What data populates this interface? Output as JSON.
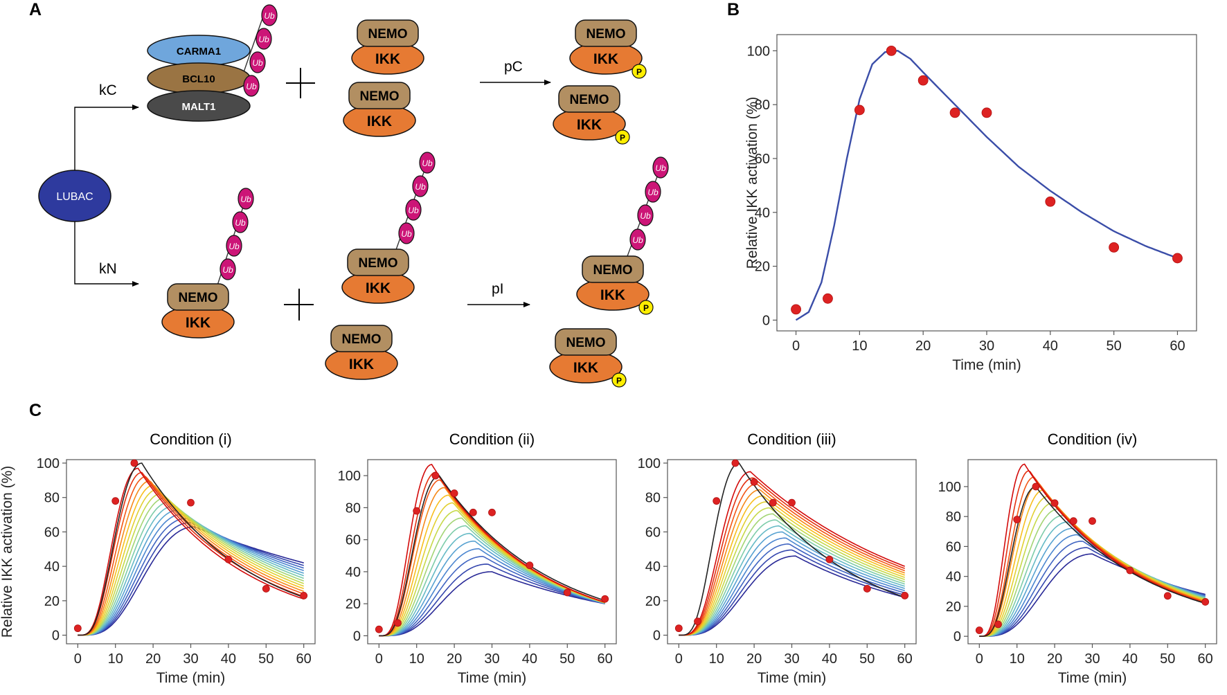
{
  "panel_labels": {
    "a": "A",
    "b": "B",
    "c": "C"
  },
  "diagram": {
    "lubac": "LUBAC",
    "cbm": {
      "carma1": "CARMA1",
      "bcl10": "BCL10",
      "malt1": "MALT1"
    },
    "nemo": "NEMO",
    "ikk": "IKK",
    "ub": "Ub",
    "phospho": "P",
    "rates": {
      "kC": "kC",
      "kN": "kN",
      "pC": "pC",
      "pI": "pI"
    },
    "plus": "+"
  },
  "colors": {
    "lubac": "#2e3a9e",
    "carma1": "#6fa6dc",
    "bcl10": "#9a7443",
    "malt1": "#4a4a4a",
    "nemo": "#b28f62",
    "ikk": "#e67a33",
    "ub": "#cc1577",
    "phospho": "#ffee00",
    "fit_line": "#3a4da8",
    "data_point": "#dd2222"
  },
  "chart_data": [
    {
      "id": "B",
      "type": "scatter",
      "title": "",
      "xlabel": "Time (min)",
      "ylabel": "Relative IKK activation (%)",
      "xlim": [
        -3,
        63
      ],
      "ylim": [
        -4,
        106
      ],
      "xticks": [
        0,
        10,
        20,
        30,
        40,
        50,
        60
      ],
      "yticks": [
        0,
        20,
        40,
        60,
        80,
        100
      ],
      "points": {
        "x": [
          0,
          5,
          10,
          15,
          20,
          25,
          30,
          40,
          50,
          60
        ],
        "y": [
          4,
          8,
          78,
          100,
          89,
          77,
          77,
          44,
          27,
          23
        ]
      },
      "fit_curve": {
        "x": [
          0,
          2,
          4,
          6,
          8,
          10,
          12,
          14,
          16,
          18,
          20,
          25,
          30,
          35,
          40,
          45,
          50,
          55,
          60
        ],
        "y": [
          0,
          3,
          14,
          35,
          60,
          82,
          95,
          99.5,
          100,
          97,
          92,
          80,
          68,
          57,
          48,
          40,
          33,
          27.5,
          23
        ]
      }
    },
    {
      "id": "C-i",
      "type": "line",
      "title": "Condition (i)",
      "xlabel": "Time (min)",
      "ylabel": "Relative IKK activation (%)",
      "xlim": [
        -3,
        63
      ],
      "ylim": [
        -5,
        102
      ],
      "xticks": [
        0,
        10,
        20,
        30,
        40,
        50,
        60
      ],
      "yticks": [
        0,
        20,
        40,
        60,
        80,
        100
      ],
      "points": {
        "x": [
          0,
          10,
          15,
          30,
          40,
          50,
          60
        ],
        "y": [
          4,
          78,
          100,
          77,
          44,
          27,
          23
        ]
      },
      "reference_curve": {
        "peak": 100,
        "peak_time": 17,
        "end_value": 22
      },
      "family": {
        "count": 15,
        "peak_first": 97,
        "peak_last": 63,
        "peak_time_first": 16,
        "peak_time_last": 31,
        "end_first": 21,
        "end_last": 42
      }
    },
    {
      "id": "C-ii",
      "type": "line",
      "title": "Condition (ii)",
      "xlabel": "Time (min)",
      "ylabel": "",
      "xlim": [
        -3,
        63
      ],
      "ylim": [
        -5,
        110
      ],
      "xticks": [
        0,
        10,
        20,
        30,
        40,
        50,
        60
      ],
      "yticks": [
        0,
        20,
        40,
        60,
        80,
        100
      ],
      "points": {
        "x": [
          0,
          5,
          10,
          15,
          20,
          25,
          30,
          40,
          50,
          60
        ],
        "y": [
          4,
          8,
          78,
          100,
          89,
          77,
          77,
          44,
          27,
          23
        ]
      },
      "reference_curve": {
        "peak": 100,
        "peak_time": 16,
        "end_value": 22
      },
      "family": {
        "count": 15,
        "peak_first": 107,
        "peak_last": 40,
        "peak_time_first": 14,
        "peak_time_last": 30,
        "end_first": 21,
        "end_last": 20
      }
    },
    {
      "id": "C-iii",
      "type": "line",
      "title": "Condition (iii)",
      "xlabel": "Time (min)",
      "ylabel": "",
      "xlim": [
        -3,
        63
      ],
      "ylim": [
        -5,
        102
      ],
      "xticks": [
        0,
        10,
        20,
        30,
        40,
        50,
        60
      ],
      "yticks": [
        0,
        20,
        40,
        60,
        80,
        100
      ],
      "points": {
        "x": [
          0,
          5,
          10,
          15,
          20,
          25,
          30,
          40,
          50,
          60
        ],
        "y": [
          4,
          8,
          78,
          100,
          89,
          77,
          77,
          44,
          27,
          23
        ]
      },
      "reference_curve": {
        "peak": 100,
        "peak_time": 16,
        "end_value": 22
      },
      "family": {
        "count": 15,
        "peak_first": 95,
        "peak_last": 46,
        "peak_time_first": 19,
        "peak_time_last": 31,
        "end_first": 40,
        "end_last": 22
      }
    },
    {
      "id": "C-iv",
      "type": "line",
      "title": "Condition (iv)",
      "xlabel": "Time (min)",
      "ylabel": "",
      "xlim": [
        -3,
        63
      ],
      "ylim": [
        -5,
        118
      ],
      "xticks": [
        0,
        10,
        20,
        30,
        40,
        50,
        60
      ],
      "yticks": [
        0,
        20,
        40,
        60,
        80,
        100
      ],
      "points": {
        "x": [
          0,
          5,
          10,
          15,
          20,
          25,
          30,
          40,
          50,
          60
        ],
        "y": [
          4,
          8,
          78,
          100,
          89,
          77,
          77,
          44,
          27,
          23
        ]
      },
      "reference_curve": {
        "peak": 100,
        "peak_time": 15,
        "end_value": 22
      },
      "family": {
        "count": 15,
        "peak_first": 115,
        "peak_last": 55,
        "peak_time_first": 12,
        "peak_time_last": 30,
        "end_first": 22,
        "end_last": 28
      }
    }
  ]
}
